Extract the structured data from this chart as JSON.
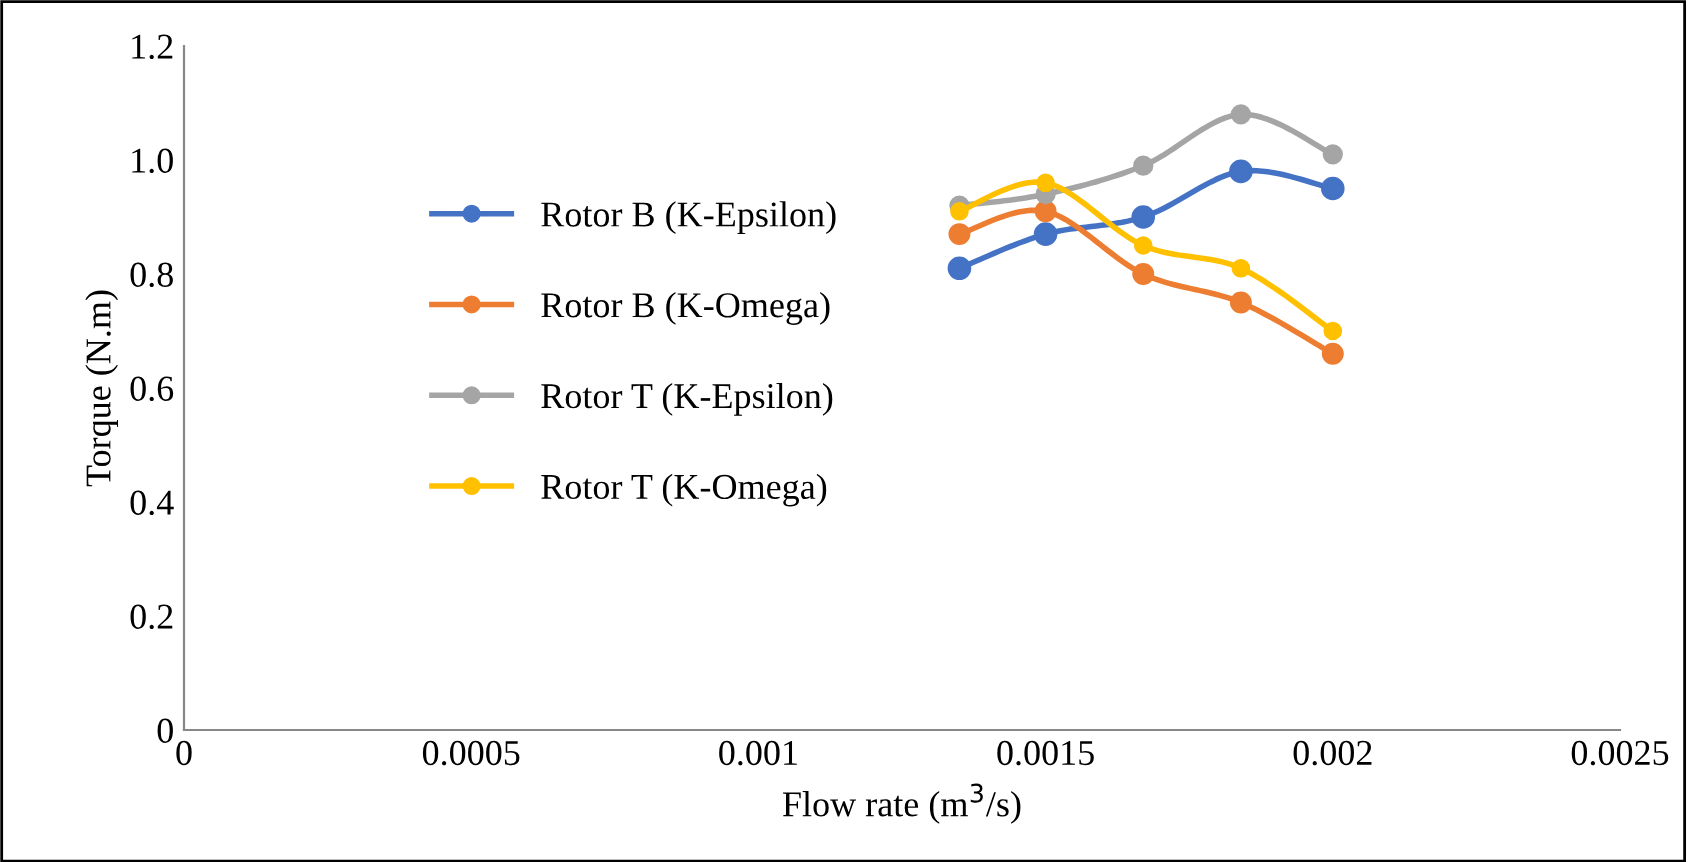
{
  "chart_data": {
    "type": "line",
    "xlabel": "Flow rate (m$^{3}$/s)",
    "ylabel": "Torque (N.m)",
    "x": [
      0.00135,
      0.0015,
      0.00167,
      0.00184,
      0.002
    ],
    "series": [
      {
        "name": "Rotor B (K-Epsilon)",
        "color": "#4472c4",
        "values": [
          0.81,
          0.87,
          0.9,
          0.98,
          0.95
        ]
      },
      {
        "name": "Rotor B (K-Omega)",
        "color": "#ed7d31",
        "values": [
          0.87,
          0.91,
          0.8,
          0.75,
          0.66
        ]
      },
      {
        "name": "Rotor T (K-Epsilon)",
        "color": "#a5a5a5",
        "values": [
          0.92,
          0.94,
          0.99,
          1.08,
          1.01
        ]
      },
      {
        "name": "Rotor T (K-Omega)",
        "color": "#ffc000",
        "values": [
          0.91,
          0.96,
          0.85,
          0.81,
          0.7
        ]
      }
    ],
    "xlim": [
      0,
      0.0025
    ],
    "xticks": [
      0,
      0.0005,
      0.001,
      0.0015,
      0.002,
      0.0025
    ],
    "ylim": [
      0,
      1.2
    ],
    "yticks": [
      0,
      0.2,
      0.4,
      0.6,
      0.8,
      {
        "value": 1.0,
        "label": "1.0"
      },
      1.2
    ],
    "grid": false,
    "legend": "left",
    "marker": "circle",
    "line_style": "solid"
  }
}
